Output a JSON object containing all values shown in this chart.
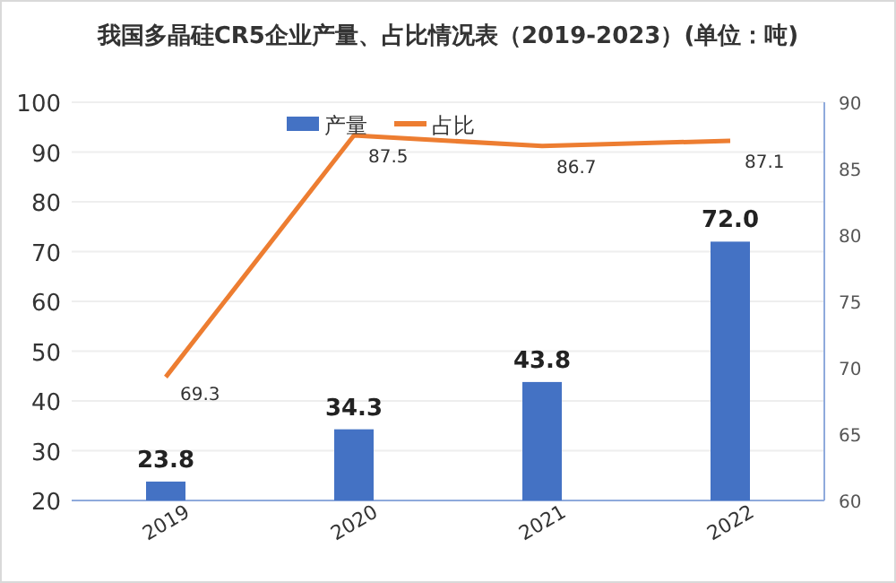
{
  "chart_data": {
    "type": "bar",
    "title": "我国多晶硅CR5企业产量、占比情况表（2019-2023）(单位：吨)",
    "categories": [
      "2019",
      "2020",
      "2021",
      "2022"
    ],
    "series": [
      {
        "name": "产量",
        "color": "#4472c4",
        "values": [
          23.8,
          34.3,
          43.8,
          72.0
        ],
        "value_labels": [
          "23.8",
          "34.3",
          "43.8",
          "72.0"
        ]
      },
      {
        "name": "占比",
        "type": "line",
        "axis": "y2",
        "color": "#ed7d31",
        "values": [
          69.3,
          87.5,
          86.7,
          87.1
        ]
      }
    ],
    "ylim": [
      20,
      100
    ],
    "yticks": [
      20,
      30,
      40,
      50,
      60,
      70,
      80,
      90,
      100
    ],
    "y2lim": [
      60,
      90
    ],
    "y2ticks": [
      60,
      65,
      70,
      75,
      80,
      85,
      90
    ],
    "grid": "y",
    "legend": "top",
    "data_labels": true,
    "marker": "none"
  }
}
